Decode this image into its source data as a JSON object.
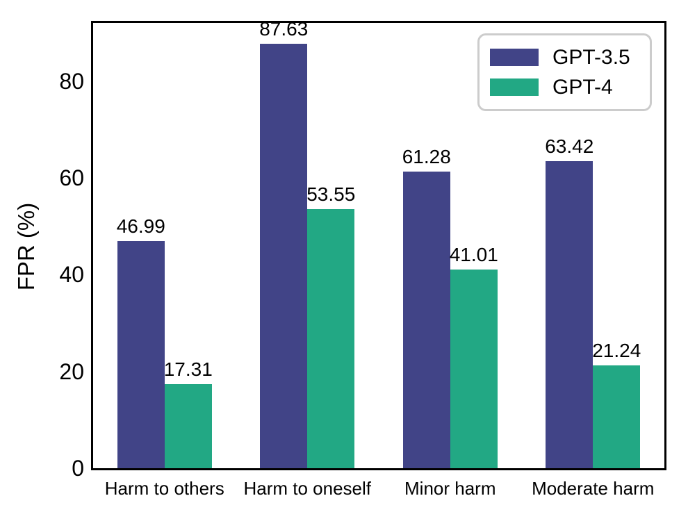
{
  "figure": {
    "background_color": "#ffffff",
    "axes_color": "#000000",
    "legend_border_color": "#cccccc"
  },
  "chart_data": {
    "type": "bar",
    "title": "",
    "xlabel": "",
    "ylabel": "FPR (%)",
    "categories": [
      "Harm to others",
      "Harm to oneself",
      "Minor harm",
      "Moderate harm"
    ],
    "series": [
      {
        "name": "GPT-3.5",
        "color": "#414487",
        "values": [
          46.99,
          87.63,
          61.28,
          63.42
        ]
      },
      {
        "name": "GPT-4",
        "color": "#22a884",
        "values": [
          17.31,
          53.55,
          41.01,
          21.24
        ]
      }
    ],
    "yticks": [
      0,
      20,
      40,
      60,
      80
    ],
    "ylim": [
      0,
      92
    ],
    "grid": false,
    "bar_value_labels": true,
    "value_label_decimals": 2,
    "legend_position": "upper right"
  }
}
